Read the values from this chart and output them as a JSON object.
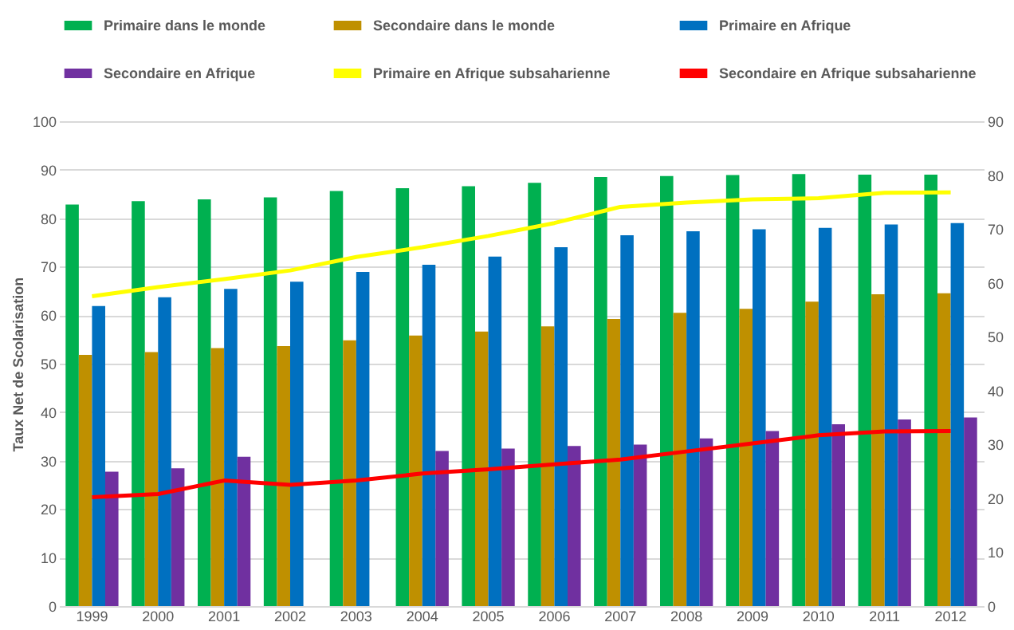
{
  "chart_data": {
    "type": "bar",
    "ylabel": "Taux Net de Scolarisation",
    "categories": [
      "1999",
      "2000",
      "2001",
      "2002",
      "2003",
      "2004",
      "2005",
      "2006",
      "2007",
      "2008",
      "2009",
      "2010",
      "2011",
      "2012"
    ],
    "series": [
      {
        "name": "Primaire dans le monde",
        "color": "#00b050",
        "values": [
          82.8,
          83.5,
          83.9,
          84.3,
          85.6,
          86.2,
          86.6,
          87.3,
          88.5,
          88.7,
          88.9,
          89.1,
          89.0,
          89.0
        ]
      },
      {
        "name": "Secondaire dans le monde",
        "color": "#bf9000",
        "values": [
          51.8,
          52.4,
          53.2,
          53.6,
          54.8,
          55.8,
          56.6,
          57.7,
          59.2,
          60.5,
          61.3,
          62.8,
          64.3,
          64.5
        ]
      },
      {
        "name": "Primaire en Afrique",
        "color": "#0070c0",
        "values": [
          61.9,
          63.7,
          65.4,
          66.9,
          68.9,
          70.4,
          72.1,
          74.0,
          76.5,
          77.3,
          77.7,
          78.0,
          78.7,
          79.0
        ]
      },
      {
        "name": "Secondaire en Afrique",
        "color": "#7030a0",
        "values": [
          27.7,
          28.4,
          30.8,
          null,
          null,
          32.0,
          32.5,
          33.0,
          33.3,
          34.6,
          36.1,
          37.5,
          38.5,
          38.9
        ]
      },
      {
        "name": "Primaire en Afrique subsaharienne",
        "color": "#ffff00",
        "type": "line",
        "axis": "y2",
        "values": [
          57.5,
          59.2,
          60.7,
          62.3,
          64.8,
          66.6,
          68.7,
          71.1,
          74.1,
          74.9,
          75.5,
          75.7,
          76.7,
          76.8
        ]
      },
      {
        "name": "Secondaire en Afrique subsaharienne",
        "color": "#ff0000",
        "type": "line",
        "axis": "y2",
        "values": [
          20.2,
          20.8,
          23.3,
          22.5,
          23.3,
          24.6,
          25.4,
          26.3,
          27.2,
          28.7,
          30.2,
          31.7,
          32.4,
          32.5
        ]
      }
    ],
    "ylim": [
      0,
      100
    ],
    "yticks": [
      0,
      10,
      20,
      30,
      40,
      50,
      60,
      70,
      80,
      90,
      100
    ],
    "y2lim": [
      0,
      90
    ],
    "y2ticks": [
      0,
      10,
      20,
      30,
      40,
      50,
      60,
      70,
      80,
      90
    ],
    "grid": "y",
    "legend": "top"
  }
}
